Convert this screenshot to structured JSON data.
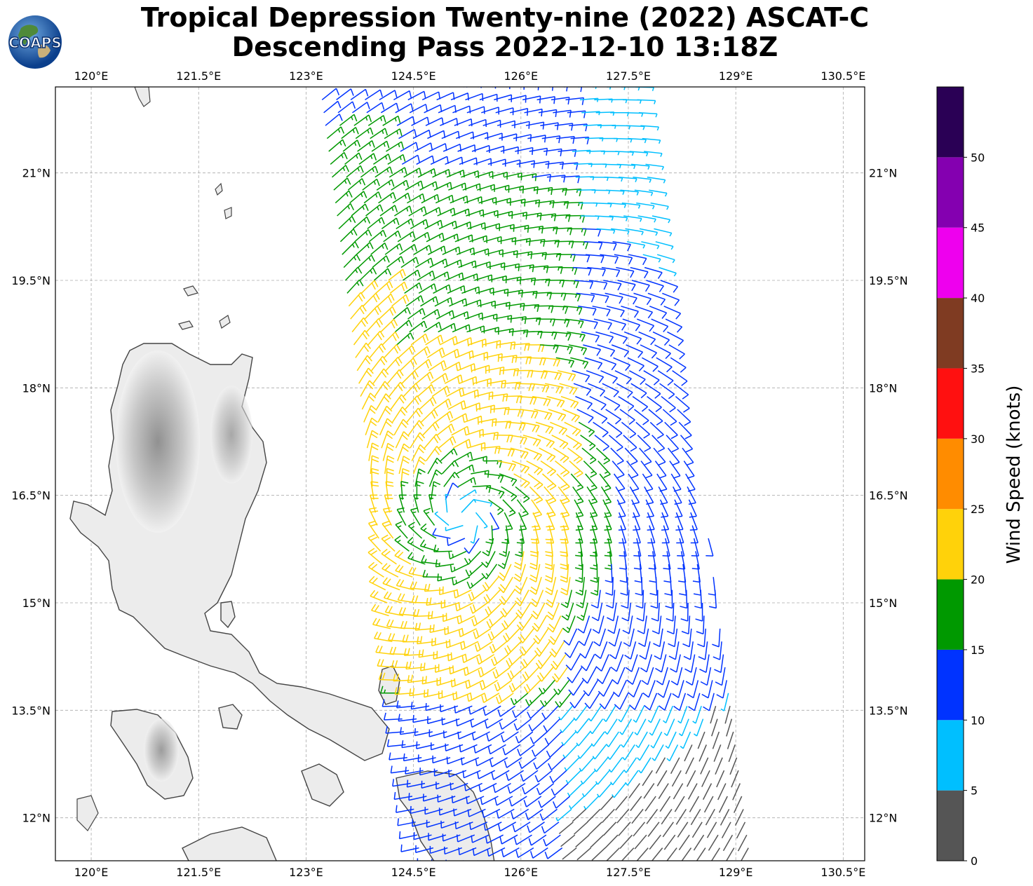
{
  "logo": {
    "text": "COAPS"
  },
  "title": {
    "line1": "Tropical Depression Twenty-nine (2022) ASCAT-C",
    "line2": "Descending Pass 2022-12-10 13:18Z"
  },
  "map": {
    "lon_range": [
      119.5,
      130.8
    ],
    "lat_range": [
      11.4,
      22.2
    ],
    "lon_ticks": [
      {
        "v": 120.0,
        "label": "120°E"
      },
      {
        "v": 121.5,
        "label": "121.5°E"
      },
      {
        "v": 123.0,
        "label": "123°E"
      },
      {
        "v": 124.5,
        "label": "124.5°E"
      },
      {
        "v": 126.0,
        "label": "126°E"
      },
      {
        "v": 127.5,
        "label": "127.5°E"
      },
      {
        "v": 129.0,
        "label": "129°E"
      },
      {
        "v": 130.5,
        "label": "130.5°E"
      }
    ],
    "lat_ticks": [
      {
        "v": 21.0,
        "label": "21°N"
      },
      {
        "v": 19.5,
        "label": "19.5°N"
      },
      {
        "v": 18.0,
        "label": "18°N"
      },
      {
        "v": 16.5,
        "label": "16.5°N"
      },
      {
        "v": 15.0,
        "label": "15°N"
      },
      {
        "v": 13.5,
        "label": "13.5°N"
      },
      {
        "v": 12.0,
        "label": "12°N"
      }
    ],
    "storm_center": {
      "lon": 125.2,
      "lat": 16.2
    },
    "swath": {
      "lon_start_north": 123.2,
      "lon_start_south": 124.6,
      "width_deg": 4.6
    }
  },
  "colorbar": {
    "label": "Wind Speed (knots)",
    "bins": [
      {
        "min": 0,
        "max": 5,
        "color": "#555555"
      },
      {
        "min": 5,
        "max": 10,
        "color": "#00bfff"
      },
      {
        "min": 10,
        "max": 15,
        "color": "#0033ff"
      },
      {
        "min": 15,
        "max": 20,
        "color": "#009900"
      },
      {
        "min": 20,
        "max": 25,
        "color": "#ffd20a"
      },
      {
        "min": 25,
        "max": 30,
        "color": "#ff8c00"
      },
      {
        "min": 30,
        "max": 35,
        "color": "#ff1010"
      },
      {
        "min": 35,
        "max": 40,
        "color": "#7f3b22"
      },
      {
        "min": 40,
        "max": 45,
        "color": "#ee00ee"
      },
      {
        "min": 45,
        "max": 50,
        "color": "#8400b0"
      },
      {
        "min": 50,
        "max": 55,
        "color": "#2a0055"
      }
    ],
    "ticks": [
      "0",
      "5",
      "10",
      "15",
      "20",
      "25",
      "30",
      "35",
      "40",
      "45",
      "50"
    ]
  }
}
